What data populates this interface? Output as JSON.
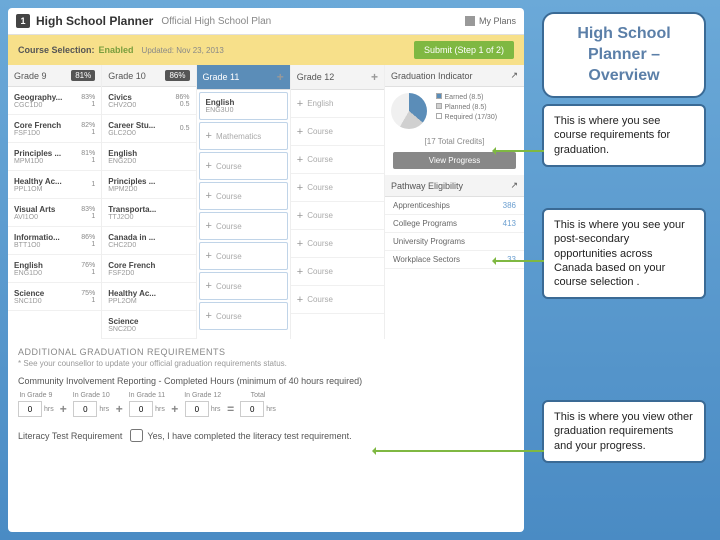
{
  "header": {
    "num": "1",
    "title": "High School Planner",
    "subtitle": "Official High School Plan",
    "myplans": "My Plans"
  },
  "status": {
    "label": "Course Selection:",
    "value": "Enabled",
    "updated": "Updated: Nov 23, 2013",
    "submit": "Submit (Step 1 of 2)"
  },
  "grades": [
    {
      "name": "Grade 9",
      "pct": "81%",
      "active": false,
      "courses": [
        {
          "name": "Geography...",
          "code": "CGC1D0",
          "grade": "83%",
          "credit": "1"
        },
        {
          "name": "Core French",
          "code": "FSF1D0",
          "grade": "82%",
          "credit": "1"
        },
        {
          "name": "Principles ...",
          "code": "MPM1D0",
          "grade": "81%",
          "credit": "1"
        },
        {
          "name": "Healthy Ac...",
          "code": "PPL1OM",
          "grade": "",
          "credit": "1"
        },
        {
          "name": "Visual Arts",
          "code": "AVI1O0",
          "grade": "83%",
          "credit": "1"
        },
        {
          "name": "Informatio...",
          "code": "BTT1O0",
          "grade": "86%",
          "credit": "1"
        },
        {
          "name": "English",
          "code": "ENG1D0",
          "grade": "76%",
          "credit": "1"
        },
        {
          "name": "Science",
          "code": "SNC1D0",
          "grade": "75%",
          "credit": "1"
        }
      ]
    },
    {
      "name": "Grade 10",
      "pct": "86%",
      "active": false,
      "courses": [
        {
          "name": "Civics",
          "code": "CHV2O0",
          "grade": "86%",
          "credit": "0.5"
        },
        {
          "name": "Career Stu...",
          "code": "GLC2O0",
          "grade": "",
          "credit": "0.5"
        },
        {
          "name": "English",
          "code": "ENG2D0",
          "grade": "",
          "credit": ""
        },
        {
          "name": "Principles ...",
          "code": "MPM2D0",
          "grade": "",
          "credit": ""
        },
        {
          "name": "Transporta...",
          "code": "TTJ2O0",
          "grade": "",
          "credit": ""
        },
        {
          "name": "Canada in ...",
          "code": "CHC2D0",
          "grade": "",
          "credit": ""
        },
        {
          "name": "Core French",
          "code": "FSF2D0",
          "grade": "",
          "credit": ""
        },
        {
          "name": "Healthy Ac...",
          "code": "PPL2OM",
          "grade": "",
          "credit": ""
        },
        {
          "name": "Science",
          "code": "SNC2D0",
          "grade": "",
          "credit": ""
        }
      ]
    },
    {
      "name": "Grade 11",
      "pct": "",
      "active": true,
      "courses": [
        {
          "name": "English",
          "code": "ENG3U0",
          "grade": "",
          "credit": ""
        }
      ],
      "placeholders": [
        "Mathematics",
        "Course",
        "Course",
        "Course",
        "Course",
        "Course",
        "Course"
      ]
    },
    {
      "name": "Grade 12",
      "pct": "",
      "active": false,
      "courses": [],
      "placeholders": [
        "English",
        "Course",
        "Course",
        "Course",
        "Course",
        "Course",
        "Course",
        "Course"
      ]
    }
  ],
  "grad": {
    "title": "Graduation Indicator",
    "legend": [
      "Earned (8.5)",
      "Planned (8.5)",
      "Required (17/30)"
    ],
    "credits": "[17 Total Credits]",
    "view": "View Progress"
  },
  "pathway": {
    "title": "Pathway Eligibility",
    "rows": [
      {
        "l": "Apprenticeships",
        "n": "386"
      },
      {
        "l": "College Programs",
        "n": "413"
      },
      {
        "l": "University Programs",
        "n": ""
      },
      {
        "l": "Workplace Sectors",
        "n": "33"
      }
    ]
  },
  "agr": {
    "title": "ADDITIONAL GRADUATION REQUIREMENTS",
    "note": "* See your counsellor to update your official graduation requirements status.",
    "sub": "Community Involvement Reporting - Completed Hours (minimum of 40 hours required)",
    "cols": [
      "In Grade 9",
      "In Grade 10",
      "In Grade 11",
      "In Grade 12",
      "Total"
    ],
    "unit": "hrs",
    "vals": [
      "0",
      "0",
      "0",
      "0",
      "0"
    ]
  },
  "lit": {
    "label": "Literacy Test Requirement",
    "text": "Yes, I have completed the literacy test requirement."
  },
  "callouts": {
    "title": "High School Planner – Overview",
    "c1": "This is where you see course requirements for graduation.",
    "c2": "This is where you see your post-secondary opportunities across Canada based on your course selection .",
    "c3": "This is where you view other graduation requirements and your progress."
  }
}
